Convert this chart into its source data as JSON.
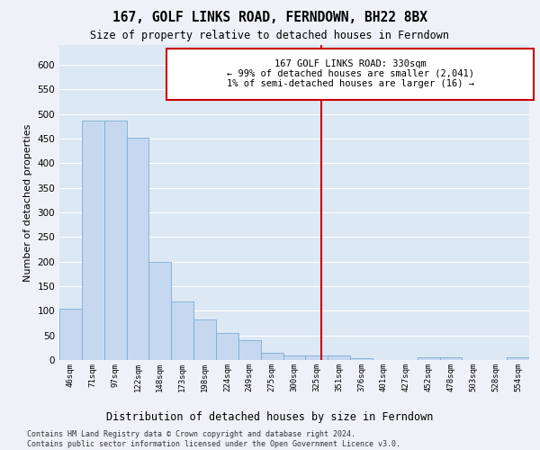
{
  "title": "167, GOLF LINKS ROAD, FERNDOWN, BH22 8BX",
  "subtitle": "Size of property relative to detached houses in Ferndown",
  "xlabel": "Distribution of detached houses by size in Ferndown",
  "ylabel": "Number of detached properties",
  "bar_color": "#c5d8f0",
  "bar_edge_color": "#7aadd4",
  "background_color": "#dde8f5",
  "fig_background_color": "#eef2f8",
  "grid_color": "#ffffff",
  "categories": [
    "46sqm",
    "71sqm",
    "97sqm",
    "122sqm",
    "148sqm",
    "173sqm",
    "198sqm",
    "224sqm",
    "249sqm",
    "275sqm",
    "300sqm",
    "325sqm",
    "351sqm",
    "376sqm",
    "401sqm",
    "427sqm",
    "452sqm",
    "478sqm",
    "503sqm",
    "528sqm",
    "554sqm"
  ],
  "values": [
    105,
    487,
    487,
    452,
    200,
    119,
    82,
    55,
    40,
    14,
    9,
    10,
    9,
    3,
    0,
    0,
    5,
    5,
    0,
    0,
    5
  ],
  "ylim": [
    0,
    640
  ],
  "yticks": [
    0,
    50,
    100,
    150,
    200,
    250,
    300,
    350,
    400,
    450,
    500,
    550,
    600
  ],
  "vline_color": "#cc0000",
  "vline_x_index": 11.2,
  "annotation_text_line1": "167 GOLF LINKS ROAD: 330sqm",
  "annotation_text_line2": "← 99% of detached houses are smaller (2,041)",
  "annotation_text_line3": "1% of semi-detached houses are larger (16) →",
  "annotation_box_color": "#cc0000",
  "footer_line1": "Contains HM Land Registry data © Crown copyright and database right 2024.",
  "footer_line2": "Contains public sector information licensed under the Open Government Licence v3.0."
}
